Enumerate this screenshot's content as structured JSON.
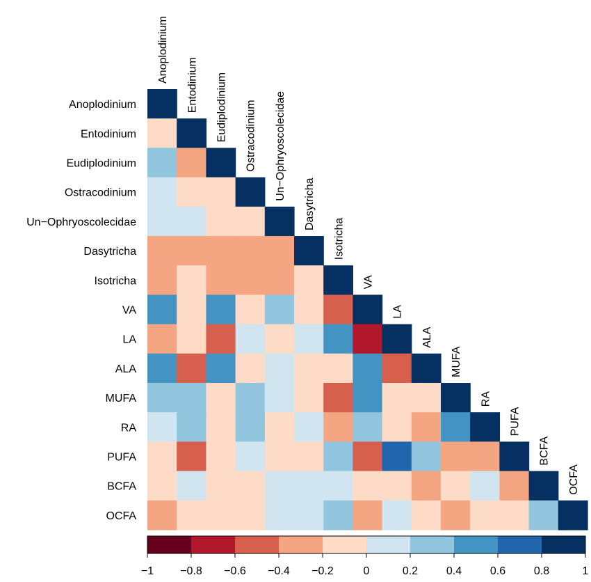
{
  "chart_data": {
    "type": "heatmap",
    "title": "",
    "rows": [
      "Anoplodinium",
      "Entodinium",
      "Eudiplodinium",
      "Ostracodinium",
      "Un−Ophryoscolecidae",
      "Dasytricha",
      "Isotricha",
      "VA",
      "LA",
      "ALA",
      "MUFA",
      "RA",
      "PUFA",
      "BCFA",
      "OCFA"
    ],
    "columns": [
      "Anoplodinium",
      "Entodinium",
      "Eudiplodinium",
      "Ostracodinium",
      "Un−Ophryoscolecidae",
      "Dasytricha",
      "Isotricha",
      "VA",
      "LA",
      "ALA",
      "MUFA",
      "RA",
      "PUFA",
      "BCFA",
      "OCFA"
    ],
    "matrix": [
      [
        1
      ],
      [
        -0.1,
        1
      ],
      [
        0.3,
        -0.3,
        1
      ],
      [
        0.1,
        -0.1,
        -0.1,
        1
      ],
      [
        0.1,
        0.1,
        -0.1,
        -0.1,
        1
      ],
      [
        -0.3,
        -0.3,
        -0.3,
        -0.3,
        -0.3,
        1
      ],
      [
        -0.3,
        -0.1,
        -0.3,
        -0.3,
        -0.3,
        -0.1,
        1
      ],
      [
        0.5,
        -0.1,
        0.5,
        -0.1,
        0.3,
        -0.1,
        -0.5,
        1
      ],
      [
        -0.3,
        -0.1,
        -0.5,
        0.1,
        -0.1,
        0.1,
        0.5,
        -0.7,
        1
      ],
      [
        0.5,
        -0.5,
        0.5,
        -0.1,
        0.1,
        -0.1,
        -0.1,
        0.5,
        -0.5,
        1
      ],
      [
        0.3,
        0.3,
        -0.1,
        0.3,
        0.1,
        -0.1,
        -0.5,
        0.5,
        -0.1,
        -0.1,
        1
      ],
      [
        0.1,
        0.3,
        -0.1,
        0.3,
        -0.1,
        0.1,
        -0.3,
        0.3,
        -0.1,
        -0.3,
        0.5,
        1
      ],
      [
        -0.1,
        -0.5,
        -0.1,
        0.1,
        -0.1,
        -0.1,
        0.3,
        -0.5,
        0.7,
        0.3,
        -0.3,
        -0.3,
        1
      ],
      [
        -0.1,
        0.1,
        -0.1,
        -0.1,
        0.1,
        0.1,
        0.1,
        -0.1,
        -0.1,
        -0.3,
        -0.1,
        0.1,
        -0.3,
        1
      ],
      [
        -0.3,
        -0.1,
        -0.1,
        -0.1,
        0.1,
        0.1,
        0.3,
        -0.3,
        0.1,
        -0.1,
        -0.3,
        -0.1,
        -0.1,
        0.3,
        1
      ]
    ],
    "scale": {
      "min": -1,
      "max": 1,
      "ticks": [
        "−1",
        "−0.8",
        "−0.6",
        "−0.4",
        "−0.2",
        "0",
        "0.2",
        "0.4",
        "0.6",
        "0.8",
        "1"
      ],
      "colors": [
        "#67001f",
        "#b2182b",
        "#d6604d",
        "#f4a582",
        "#fddbc7",
        "#d1e5f0",
        "#92c5de",
        "#4393c3",
        "#2166ac",
        "#053061"
      ]
    },
    "legend_position": "bottom",
    "grid": false
  }
}
